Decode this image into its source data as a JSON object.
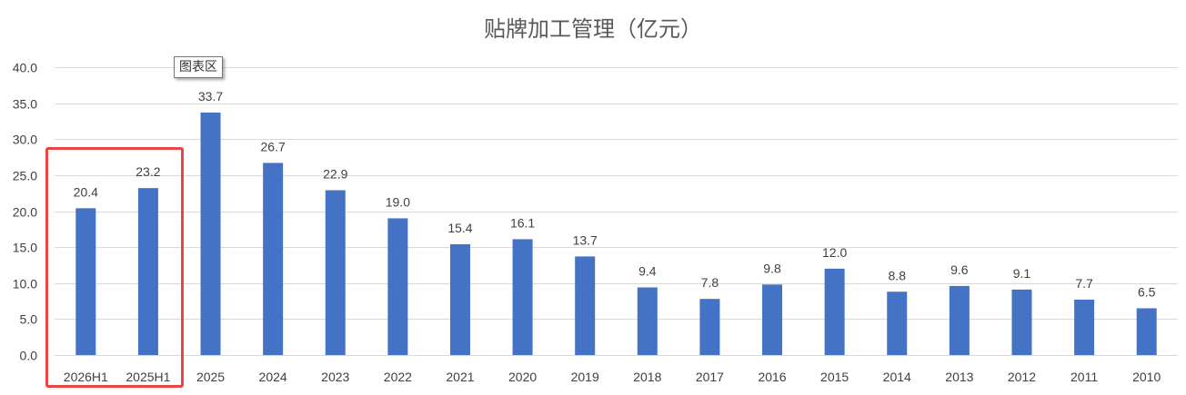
{
  "chart_data": {
    "type": "bar",
    "title": "贴牌加工管理（亿元）",
    "categories": [
      "2026H1",
      "2025H1",
      "2025",
      "2024",
      "2023",
      "2022",
      "2021",
      "2020",
      "2019",
      "2018",
      "2017",
      "2016",
      "2015",
      "2014",
      "2013",
      "2012",
      "2011",
      "2010"
    ],
    "values": [
      20.4,
      23.2,
      33.7,
      26.7,
      22.9,
      19.0,
      15.4,
      16.1,
      13.7,
      9.4,
      7.8,
      9.8,
      12.0,
      8.8,
      9.6,
      9.1,
      7.7,
      6.5
    ],
    "data_labels": [
      "20.4",
      "23.2",
      "33.7",
      "26.7",
      "22.9",
      "19.0",
      "15.4",
      "16.1",
      "13.7",
      "9.4",
      "7.8",
      "9.8",
      "12.0",
      "8.8",
      "9.6",
      "9.1",
      "7.7",
      "6.5"
    ],
    "ylim": [
      0,
      40
    ],
    "y_ticks": [
      "0.0",
      "5.0",
      "10.0",
      "15.0",
      "20.0",
      "25.0",
      "30.0",
      "35.0",
      "40.0"
    ],
    "xlabel": "",
    "ylabel": "",
    "grid": true,
    "legend": "none",
    "highlighted_categories": [
      "2026H1",
      "2025H1"
    ]
  },
  "colors": {
    "bar": "#4472c4",
    "grid": "#d9d9d9",
    "highlight": "#e84545"
  },
  "tooltip": {
    "label": "图表区"
  }
}
